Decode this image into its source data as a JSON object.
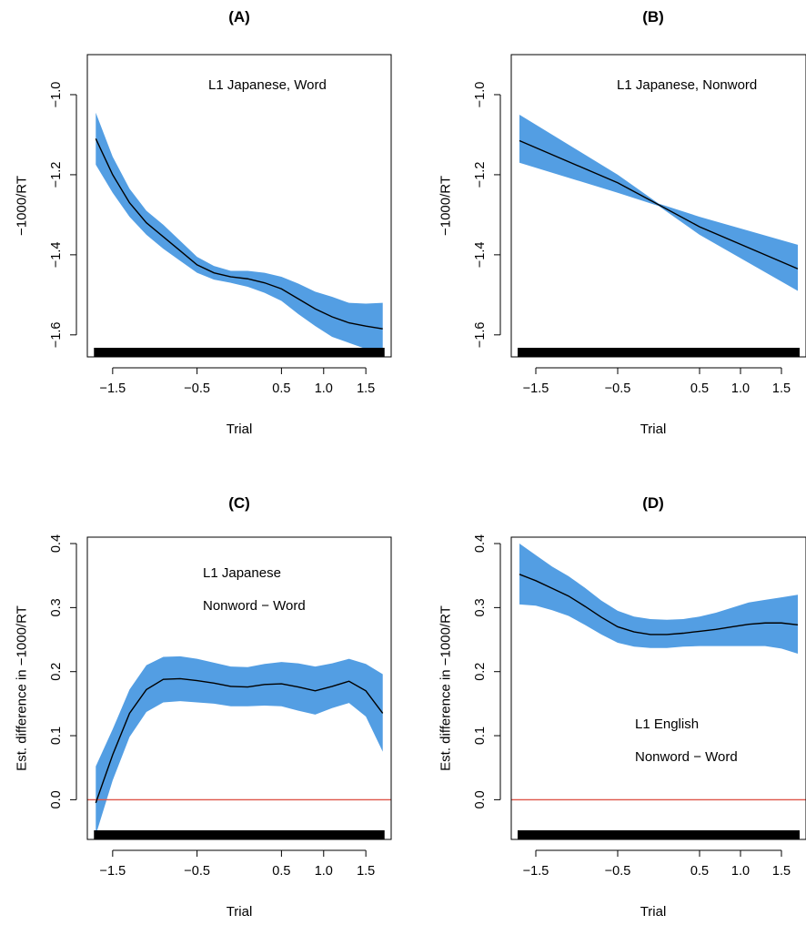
{
  "chart_data": [
    {
      "panel": "(A)",
      "type": "line",
      "title": "(A)",
      "xlabel": "Trial",
      "ylabel": "−1000/RT",
      "annotation": [
        "L1 Japanese, Word"
      ],
      "xlim": [
        -1.8,
        1.8
      ],
      "ylim": [
        -1.655,
        -0.9
      ],
      "xticks": [
        -1.5,
        -0.5,
        0.5,
        1.0,
        1.5
      ],
      "xtick_labels": [
        "−1.5",
        "−0.5",
        "0.5",
        "1.0",
        "1.5"
      ],
      "yticks": [
        -1.6,
        -1.4,
        -1.2,
        -1.0
      ],
      "ytick_labels": [
        "−1.6",
        "−1.4",
        "−1.2",
        "−1.0"
      ],
      "rug": true,
      "reference_line": null,
      "series": [
        {
          "x": [
            -1.7,
            -1.5,
            -1.3,
            -1.1,
            -0.9,
            -0.7,
            -0.5,
            -0.3,
            -0.1,
            0.1,
            0.3,
            0.5,
            0.7,
            0.9,
            1.1,
            1.3,
            1.5,
            1.7
          ],
          "y": [
            -1.11,
            -1.2,
            -1.27,
            -1.32,
            -1.355,
            -1.39,
            -1.425,
            -1.445,
            -1.455,
            -1.46,
            -1.47,
            -1.485,
            -1.51,
            -1.535,
            -1.555,
            -1.57,
            -1.578,
            -1.585
          ],
          "lower": [
            -1.175,
            -1.245,
            -1.305,
            -1.35,
            -1.385,
            -1.415,
            -1.445,
            -1.462,
            -1.47,
            -1.48,
            -1.495,
            -1.515,
            -1.548,
            -1.578,
            -1.605,
            -1.62,
            -1.635,
            -1.65
          ],
          "upper": [
            -1.045,
            -1.155,
            -1.235,
            -1.29,
            -1.325,
            -1.365,
            -1.405,
            -1.428,
            -1.44,
            -1.44,
            -1.445,
            -1.455,
            -1.472,
            -1.492,
            -1.505,
            -1.52,
            -1.522,
            -1.52
          ]
        }
      ]
    },
    {
      "panel": "(B)",
      "type": "line",
      "title": "(B)",
      "xlabel": "Trial",
      "ylabel": "−1000/RT",
      "annotation": [
        "L1 Japanese, Nonword"
      ],
      "xlim": [
        -1.8,
        1.8
      ],
      "ylim": [
        -1.655,
        -0.9
      ],
      "xticks": [
        -1.5,
        -0.5,
        0.5,
        1.0,
        1.5
      ],
      "xtick_labels": [
        "−1.5",
        "−0.5",
        "0.5",
        "1.0",
        "1.5"
      ],
      "yticks": [
        -1.6,
        -1.4,
        -1.2,
        -1.0
      ],
      "ytick_labels": [
        "−1.6",
        "−1.4",
        "−1.2",
        "−1.0"
      ],
      "rug": true,
      "reference_line": null,
      "series": [
        {
          "x": [
            -1.7,
            -0.5,
            0.0,
            0.5,
            1.7
          ],
          "y": [
            -1.115,
            -1.22,
            -1.275,
            -1.33,
            -1.435
          ],
          "lower": [
            -1.17,
            -1.245,
            -1.278,
            -1.35,
            -1.49
          ],
          "upper": [
            -1.05,
            -1.2,
            -1.272,
            -1.305,
            -1.375
          ]
        }
      ]
    },
    {
      "panel": "(C)",
      "type": "line",
      "title": "(C)",
      "xlabel": "Trial",
      "ylabel": "Est. difference in −1000/RT",
      "annotation": [
        "L1 Japanese",
        "Nonword − Word"
      ],
      "xlim": [
        -1.8,
        1.8
      ],
      "ylim": [
        -0.062,
        0.41
      ],
      "xticks": [
        -1.5,
        -0.5,
        0.5,
        1.0,
        1.5
      ],
      "xtick_labels": [
        "−1.5",
        "−0.5",
        "0.5",
        "1.0",
        "1.5"
      ],
      "yticks": [
        0.0,
        0.1,
        0.2,
        0.3,
        0.4
      ],
      "ytick_labels": [
        "0.0",
        "0.1",
        "0.2",
        "0.3",
        "0.4"
      ],
      "rug": true,
      "reference_line": 0.0,
      "series": [
        {
          "x": [
            -1.7,
            -1.5,
            -1.3,
            -1.1,
            -0.9,
            -0.7,
            -0.5,
            -0.3,
            -0.1,
            0.1,
            0.3,
            0.5,
            0.7,
            0.9,
            1.1,
            1.3,
            1.5,
            1.7
          ],
          "y": [
            -0.005,
            0.07,
            0.135,
            0.172,
            0.188,
            0.189,
            0.186,
            0.182,
            0.177,
            0.176,
            0.18,
            0.181,
            0.176,
            0.17,
            0.177,
            0.185,
            0.17,
            0.135
          ],
          "lower": [
            -0.055,
            0.03,
            0.098,
            0.137,
            0.152,
            0.154,
            0.152,
            0.15,
            0.146,
            0.146,
            0.147,
            0.146,
            0.139,
            0.133,
            0.143,
            0.151,
            0.13,
            0.075
          ],
          "upper": [
            0.052,
            0.11,
            0.172,
            0.21,
            0.223,
            0.224,
            0.22,
            0.214,
            0.208,
            0.207,
            0.212,
            0.215,
            0.213,
            0.208,
            0.213,
            0.22,
            0.212,
            0.196
          ]
        }
      ]
    },
    {
      "panel": "(D)",
      "type": "line",
      "title": "(D)",
      "xlabel": "Trial",
      "ylabel": "Est. difference in −1000/RT",
      "annotation": [
        "L1 English",
        "Nonword − Word"
      ],
      "xlim": [
        -1.8,
        1.8
      ],
      "ylim": [
        -0.062,
        0.41
      ],
      "xticks": [
        -1.5,
        -0.5,
        0.5,
        1.0,
        1.5
      ],
      "xtick_labels": [
        "−1.5",
        "−0.5",
        "0.5",
        "1.0",
        "1.5"
      ],
      "yticks": [
        0.0,
        0.1,
        0.2,
        0.3,
        0.4
      ],
      "ytick_labels": [
        "0.0",
        "0.1",
        "0.2",
        "0.3",
        "0.4"
      ],
      "rug": true,
      "reference_line": 0.0,
      "series": [
        {
          "x": [
            -1.7,
            -1.5,
            -1.3,
            -1.1,
            -0.9,
            -0.7,
            -0.5,
            -0.3,
            -0.1,
            0.1,
            0.3,
            0.5,
            0.7,
            0.9,
            1.1,
            1.3,
            1.5,
            1.7
          ],
          "y": [
            0.352,
            0.342,
            0.33,
            0.318,
            0.302,
            0.285,
            0.27,
            0.262,
            0.258,
            0.258,
            0.26,
            0.263,
            0.266,
            0.27,
            0.274,
            0.276,
            0.276,
            0.273
          ],
          "lower": [
            0.305,
            0.303,
            0.296,
            0.287,
            0.273,
            0.258,
            0.245,
            0.239,
            0.237,
            0.237,
            0.239,
            0.24,
            0.24,
            0.24,
            0.24,
            0.24,
            0.236,
            0.228
          ],
          "upper": [
            0.4,
            0.382,
            0.364,
            0.349,
            0.331,
            0.311,
            0.295,
            0.286,
            0.282,
            0.281,
            0.282,
            0.286,
            0.292,
            0.3,
            0.308,
            0.312,
            0.316,
            0.32
          ]
        }
      ]
    }
  ],
  "colors": {
    "band": "#539ee3",
    "curve": "#000000",
    "reference_line": "#de5548",
    "rug": "#000000",
    "axis": "#000000"
  }
}
